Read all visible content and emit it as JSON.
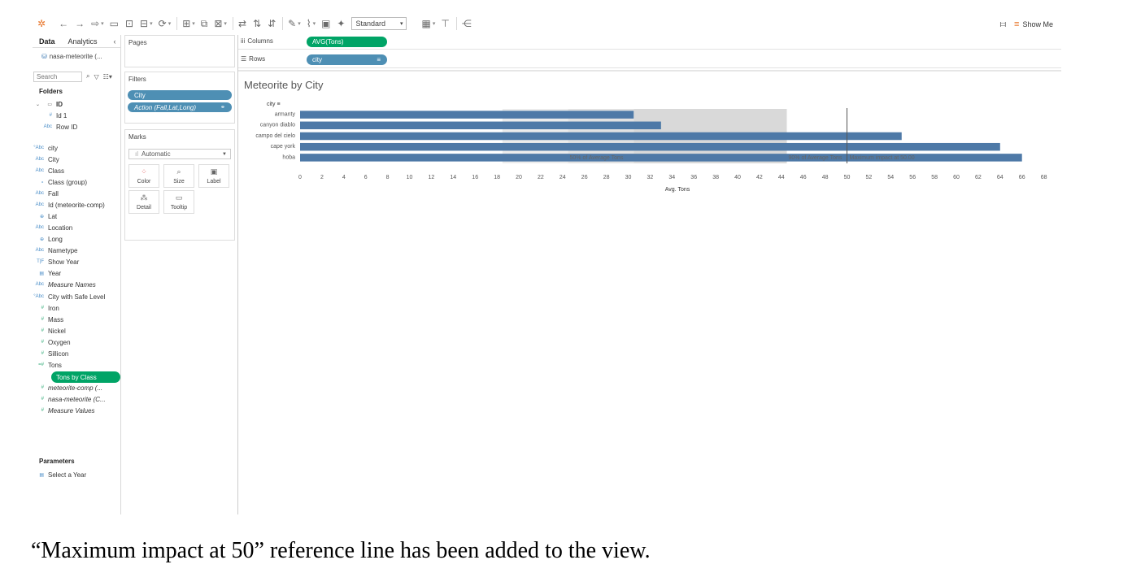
{
  "toolbar": {
    "standard_label": "Standard",
    "show_me_label": "Show Me"
  },
  "data_pane": {
    "tab_data": "Data",
    "tab_analytics": "Analytics",
    "datasource": "nasa-meteorite (...",
    "search_placeholder": "Search",
    "folders_label": "Folders",
    "folder_id": "ID",
    "folder_items": [
      {
        "icon": "#",
        "label": "Id 1"
      },
      {
        "icon": "Abc",
        "label": "Row ID"
      }
    ],
    "dimensions": [
      {
        "icon": "°Abc",
        "label": "city",
        "italic": false
      },
      {
        "icon": "Abc",
        "label": "City",
        "italic": false
      },
      {
        "icon": "Abc",
        "label": "Class",
        "italic": false
      },
      {
        "icon": "∘",
        "label": "Class (group)",
        "italic": false
      },
      {
        "icon": "Abc",
        "label": "Fall",
        "italic": false
      },
      {
        "icon": "Abc",
        "label": "Id (meteorite-comp)",
        "italic": false
      },
      {
        "icon": "⊕",
        "label": "Lat",
        "italic": false
      },
      {
        "icon": "Abc",
        "label": "Location",
        "italic": false
      },
      {
        "icon": "⊕",
        "label": "Long",
        "italic": false
      },
      {
        "icon": "Abc",
        "label": "Nametype",
        "italic": false
      },
      {
        "icon": "T|F",
        "label": "Show Year",
        "italic": false
      },
      {
        "icon": "▤",
        "label": "Year",
        "italic": false
      },
      {
        "icon": "Abc",
        "label": "Measure Names",
        "italic": true
      }
    ],
    "measures": [
      {
        "icon": "°Abc",
        "label": "City with Safe Level",
        "italic": false
      },
      {
        "icon": "#",
        "label": "Iron",
        "italic": false
      },
      {
        "icon": "#",
        "label": "Mass",
        "italic": false
      },
      {
        "icon": "#",
        "label": "Nickel",
        "italic": false
      },
      {
        "icon": "#",
        "label": "Oxygen",
        "italic": false
      },
      {
        "icon": "#",
        "label": "Sillicon",
        "italic": false
      },
      {
        "icon": "=#",
        "label": "Tons",
        "italic": false
      },
      {
        "icon": "=#",
        "label": "Tons by Class",
        "italic": false,
        "highlight": true
      },
      {
        "icon": "#",
        "label": "meteorite-comp (...",
        "italic": true
      },
      {
        "icon": "#",
        "label": "nasa-meteorite (C...",
        "italic": true
      },
      {
        "icon": "#",
        "label": "Measure Values",
        "italic": true
      }
    ],
    "parameters_label": "Parameters",
    "parameters": [
      {
        "icon": "▤",
        "label": "Select a Year"
      }
    ]
  },
  "cards": {
    "pages_label": "Pages",
    "filters_label": "Filters",
    "filters": [
      "City",
      "Action (Fall,Lat,Long)"
    ],
    "marks_label": "Marks",
    "marks_type": "Automatic",
    "mark_buttons": [
      "Color",
      "Size",
      "Label",
      "Detail",
      "Tooltip"
    ]
  },
  "shelves": {
    "columns_label": "Columns",
    "columns_pill": "AVG(Tons)",
    "rows_label": "Rows",
    "rows_pill": "city"
  },
  "chart_title": "Meteorite by City",
  "chart_data": {
    "type": "bar",
    "orientation": "horizontal",
    "title": "Meteorite by City",
    "row_header": "city",
    "categories": [
      "armanty",
      "canyon diablo",
      "campo del cielo",
      "cape york",
      "hoba"
    ],
    "values": [
      30.5,
      33.0,
      55.0,
      64.0,
      66.0
    ],
    "xlabel": "Avg. Tons",
    "ylabel": "",
    "xlim": [
      0,
      68
    ],
    "xticks": [
      0,
      2,
      4,
      6,
      8,
      10,
      12,
      14,
      16,
      18,
      20,
      22,
      24,
      26,
      28,
      30,
      32,
      34,
      36,
      38,
      40,
      42,
      44,
      46,
      48,
      50,
      52,
      54,
      56,
      58,
      60,
      62,
      64,
      66,
      68
    ],
    "bar_color": "#4e79a7",
    "reference_line": {
      "value": 50,
      "label": "Maximum impact at 50.00"
    },
    "bands": [
      {
        "label": "50% of Average Tons",
        "range": [
          18.5,
          24.5
        ],
        "shade": "light"
      },
      {
        "label": "50% of Average Tons",
        "range": [
          24.5,
          30.5
        ],
        "shade": "medium"
      },
      {
        "label": "90% of Average Tons",
        "range": [
          30.5,
          44.5
        ],
        "shade": "dark"
      }
    ]
  },
  "caption": "“Maximum impact at 50” reference line has been added to the view."
}
